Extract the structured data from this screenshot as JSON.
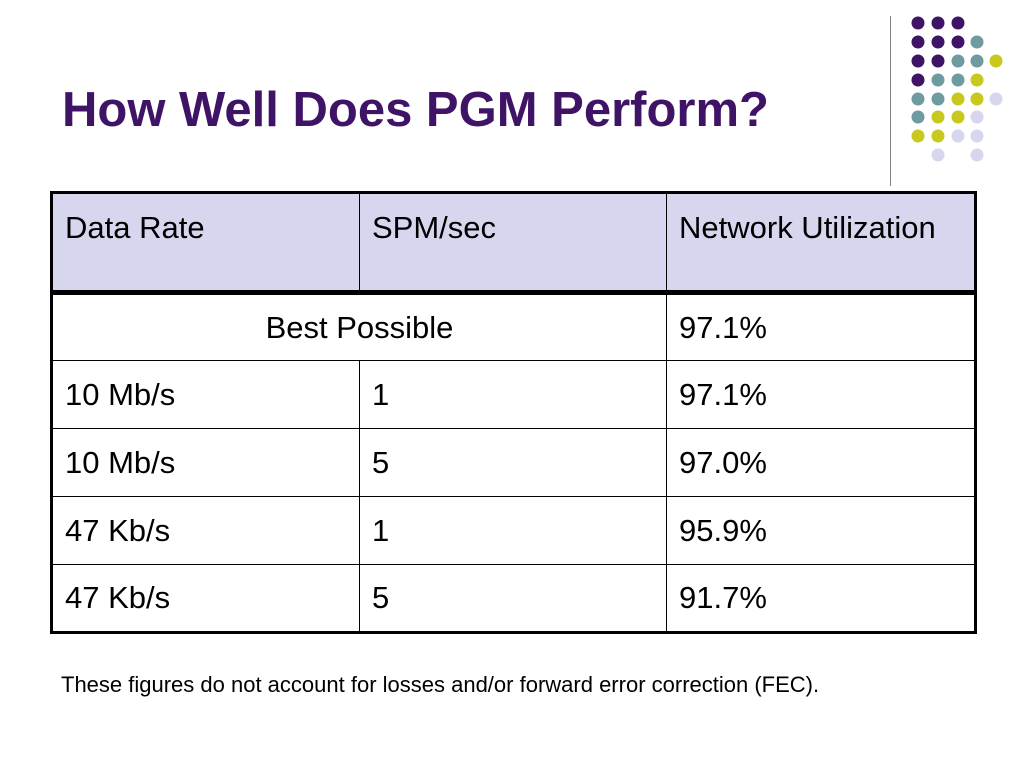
{
  "slide": {
    "title": "How Well Does PGM Perform?",
    "footnote": "These figures do not account for losses and/or forward error correction (FEC).",
    "colors": {
      "title": "#3f1466",
      "header_fill": "#d6d7ee",
      "dot_purple": "#3f1466",
      "dot_teal": "#6e9ba0",
      "dot_yellow": "#c8c81e",
      "dot_lavender": "#d6d7ee"
    }
  },
  "table": {
    "headers": [
      "Data Rate",
      "SPM/sec",
      "Network Utilization"
    ],
    "best_row": {
      "label": "Best Possible",
      "utilization": "97.1%"
    },
    "rows": [
      [
        "10 Mb/s",
        "1",
        "97.1%"
      ],
      [
        "10 Mb/s",
        "5",
        "97.0%"
      ],
      [
        "47 Kb/s",
        "1",
        "95.9%"
      ],
      [
        "47 Kb/s",
        "5",
        "91.7%"
      ]
    ]
  }
}
